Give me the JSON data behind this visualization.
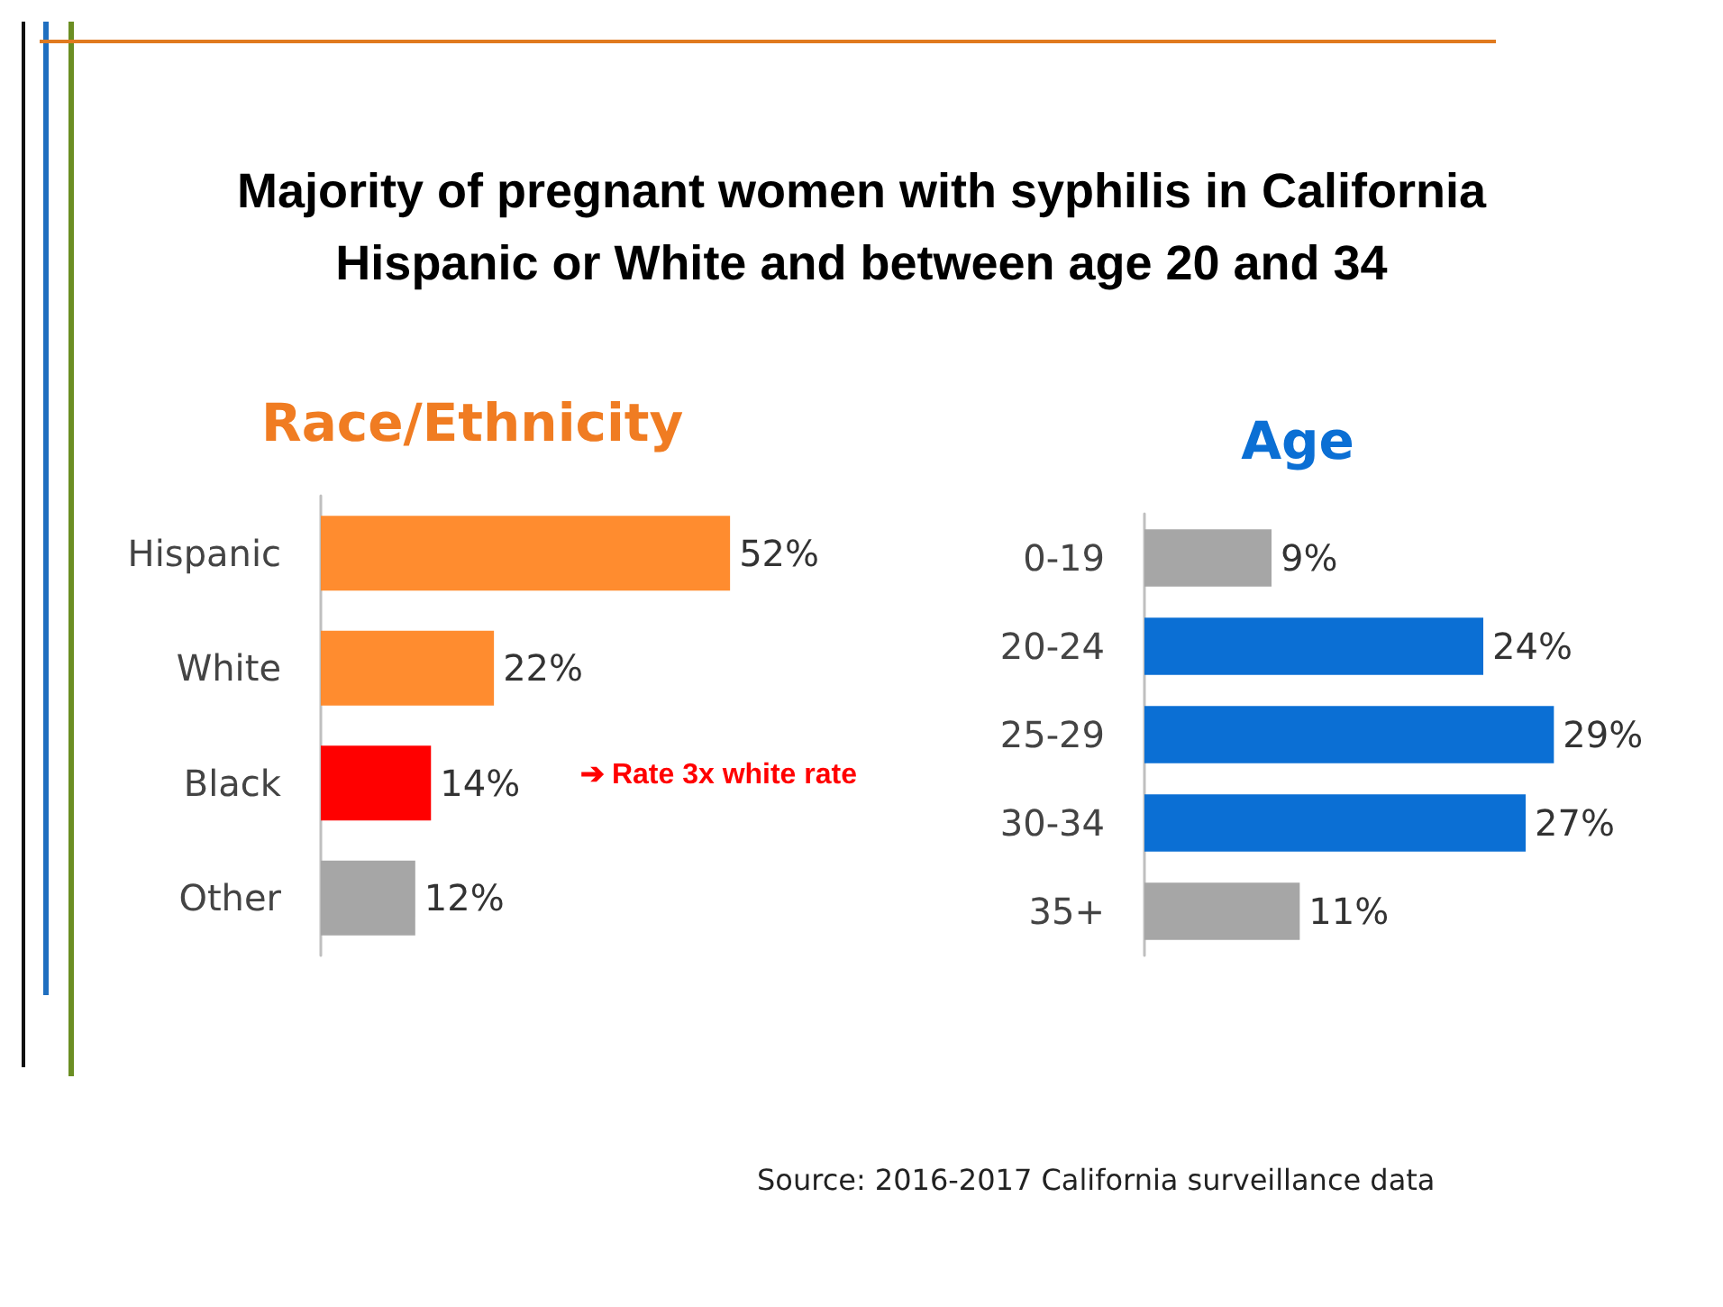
{
  "chart_data": [
    {
      "type": "other",
      "title": "Majority of pregnant women with syphilis in California",
      "subtitle": "Hispanic or White and between age 20 and 34",
      "annotations": [
        "Source: 2016-2017 California surveillance data"
      ]
    },
    {
      "type": "bar",
      "orientation": "horizontal",
      "title": "Race/Ethnicity",
      "categories": [
        "Hispanic",
        "White",
        "Black",
        "Other"
      ],
      "values": [
        52,
        22,
        14,
        12
      ],
      "colors": [
        "#ff8c2f",
        "#ff8c2f",
        "#ff0000",
        "#a6a6a6"
      ],
      "value_labels": [
        "52%",
        "22%",
        "14%",
        "12%"
      ],
      "tick_labels": "y",
      "annotations": [
        "➔ Rate 3x white rate"
      ]
    },
    {
      "type": "bar",
      "orientation": "horizontal",
      "title": "Age",
      "categories": [
        "0-19",
        "20-24",
        "25-29",
        "30-34",
        "35+"
      ],
      "values": [
        9,
        24,
        29,
        27,
        11
      ],
      "colors": [
        "#a6a6a6",
        "#0b6fd4",
        "#0b6fd4",
        "#0b6fd4",
        "#a6a6a6"
      ],
      "value_labels": [
        "9%",
        "24%",
        "29%",
        "27%",
        "11%"
      ],
      "tick_labels": "y"
    }
  ]
}
